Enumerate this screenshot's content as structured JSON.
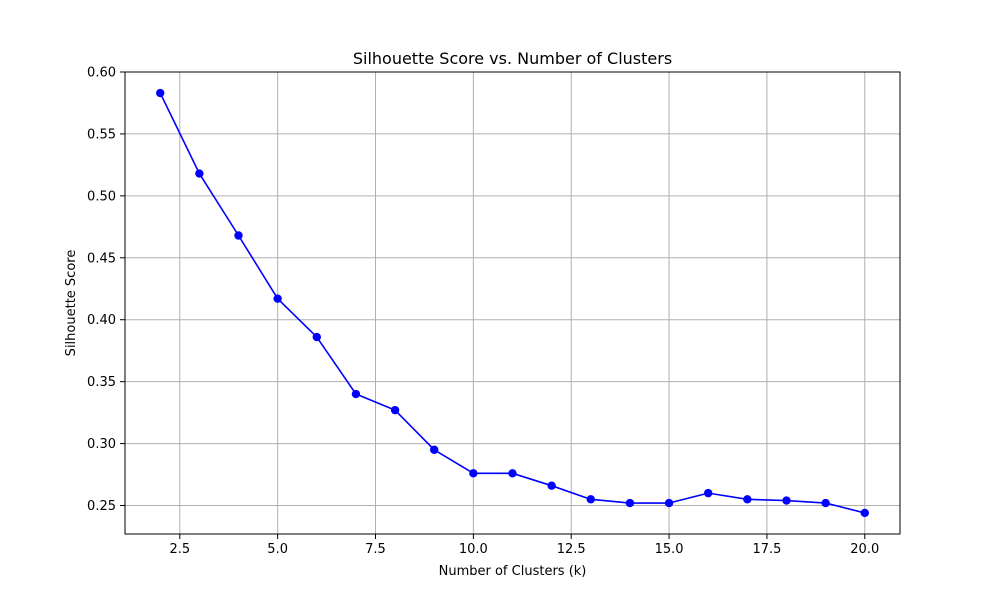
{
  "chart_data": {
    "type": "line",
    "title": "Silhouette Score vs. Number of Clusters",
    "xlabel": "Number of Clusters (k)",
    "ylabel": "Silhouette Score",
    "xlim": [
      1.1,
      20.9
    ],
    "ylim": [
      0.227,
      0.6
    ],
    "xticks": [
      2.5,
      5.0,
      7.5,
      10.0,
      12.5,
      15.0,
      17.5,
      20.0
    ],
    "xtick_labels": [
      "2.5",
      "5.0",
      "7.5",
      "10.0",
      "12.5",
      "15.0",
      "17.5",
      "20.0"
    ],
    "yticks": [
      0.25,
      0.3,
      0.35,
      0.4,
      0.45,
      0.5,
      0.55,
      0.6
    ],
    "ytick_labels": [
      "0.25",
      "0.30",
      "0.35",
      "0.40",
      "0.45",
      "0.50",
      "0.55",
      "0.60"
    ],
    "grid": true,
    "series": [
      {
        "color": "#0000ff",
        "marker": "circle",
        "x": [
          2,
          3,
          4,
          5,
          6,
          7,
          8,
          9,
          10,
          11,
          12,
          13,
          14,
          15,
          16,
          17,
          18,
          19,
          20
        ],
        "y": [
          0.583,
          0.518,
          0.468,
          0.417,
          0.386,
          0.34,
          0.327,
          0.295,
          0.276,
          0.276,
          0.266,
          0.255,
          0.252,
          0.252,
          0.26,
          0.255,
          0.254,
          0.252,
          0.244
        ]
      }
    ]
  }
}
